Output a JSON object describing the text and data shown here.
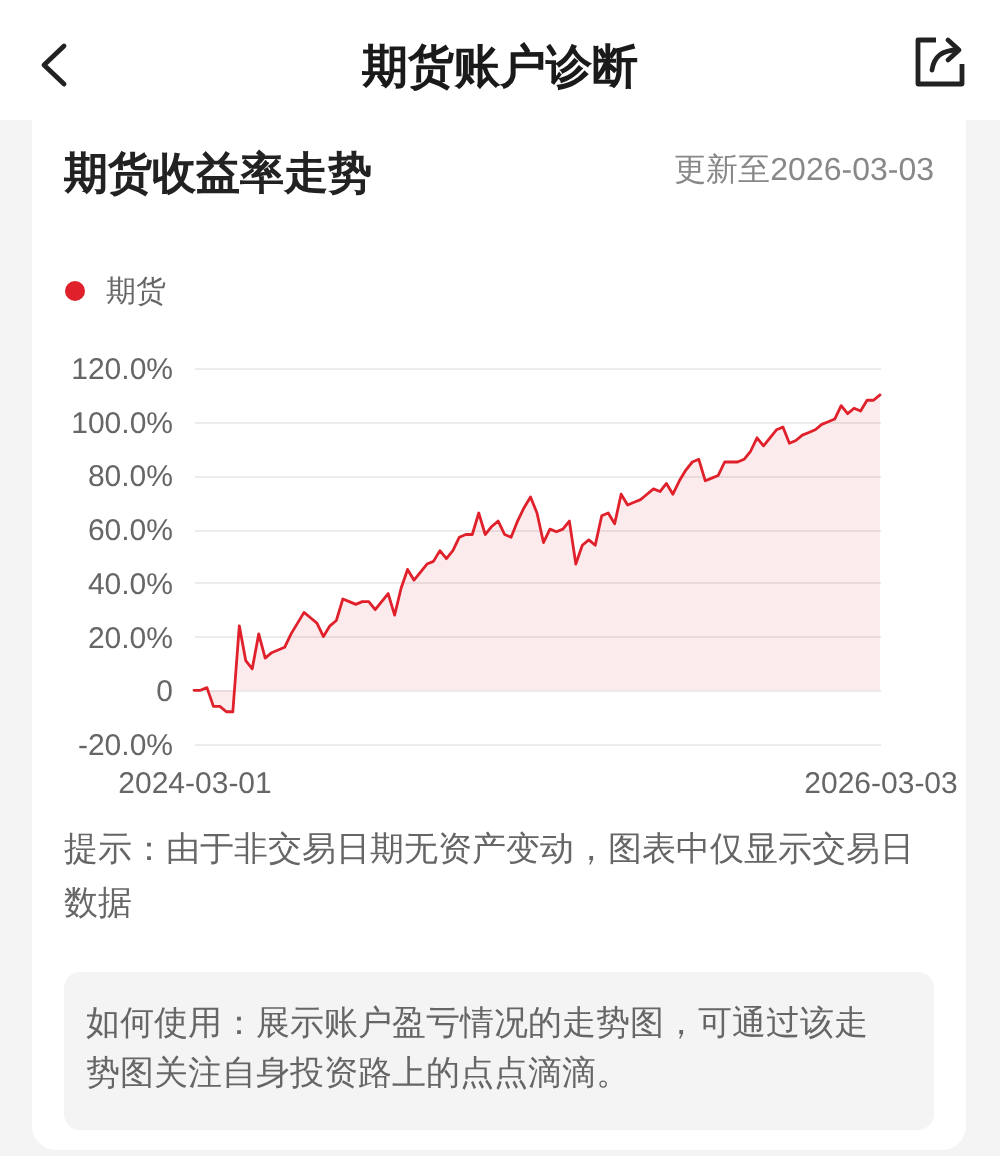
{
  "chart_data": {
    "type": "area",
    "title": "期货收益率走势",
    "subtitle": "更新至2026-03-03",
    "annotations": [
      "期货账户诊断",
      "提示：由于非交易日期无资产变动，图表中仅显示交易日数据",
      "如何使用：展示账户盈亏情况的走势图，可通过该走势图关注自身投资路上的点点滴滴。"
    ],
    "categories": [
      "2024-03-01",
      null,
      null,
      null,
      null,
      null,
      null,
      null,
      null,
      null,
      null,
      null,
      null,
      null,
      null,
      null,
      null,
      null,
      null,
      null,
      null,
      null,
      null,
      null,
      null,
      null,
      null,
      null,
      null,
      null,
      null,
      null,
      null,
      null,
      null,
      null,
      null,
      null,
      null,
      null,
      null,
      null,
      null,
      null,
      null,
      null,
      null,
      null,
      null,
      null,
      null,
      null,
      null,
      null,
      null,
      null,
      null,
      null,
      null,
      null,
      null,
      null,
      null,
      null,
      null,
      null,
      null,
      null,
      null,
      null,
      null,
      null,
      null,
      null,
      null,
      null,
      null,
      null,
      null,
      null,
      null,
      null,
      null,
      null,
      null,
      null,
      null,
      null,
      null,
      null,
      null,
      null,
      null,
      null,
      null,
      null,
      null,
      null,
      null,
      null,
      null,
      null,
      null,
      null,
      null,
      null,
      "2026-03-03"
    ],
    "series": [
      {
        "name": "期货",
        "color": "#e0202a",
        "values": [
          0,
          0,
          1,
          -6,
          -6,
          -8,
          -8,
          24,
          11,
          8,
          21,
          12,
          14,
          15,
          16,
          21,
          25,
          29,
          27,
          25,
          20,
          24,
          26,
          34,
          33,
          32,
          33,
          33,
          30,
          33,
          36,
          28,
          38,
          45,
          41,
          44,
          47,
          48,
          52,
          49,
          52,
          57,
          58,
          58,
          66,
          58,
          61,
          63,
          58,
          57,
          63,
          68,
          72,
          66,
          55,
          60,
          59,
          60,
          63,
          47,
          54,
          56,
          54,
          65,
          66,
          62,
          73,
          69,
          70,
          71,
          73,
          75,
          74,
          77,
          73,
          78,
          82,
          85,
          86,
          78,
          79,
          80,
          85,
          85,
          85,
          86,
          89,
          94,
          91,
          94,
          97,
          98,
          92,
          93,
          95,
          96,
          97,
          99,
          100,
          101,
          106,
          103,
          105,
          104,
          108,
          108,
          110
        ]
      }
    ],
    "ylim": [
      -20,
      120
    ],
    "yticks": [
      {
        "value": -20,
        "label": "-20.0%"
      },
      0,
      {
        "value": 20,
        "label": "20.0%"
      },
      {
        "value": 40,
        "label": "40.0%"
      },
      {
        "value": 60,
        "label": "60.0%"
      },
      {
        "value": 80,
        "label": "80.0%"
      },
      {
        "value": 100,
        "label": "100.0%"
      },
      {
        "value": 120,
        "label": "120.0%"
      }
    ],
    "grid": "y",
    "legend": "top left"
  }
}
